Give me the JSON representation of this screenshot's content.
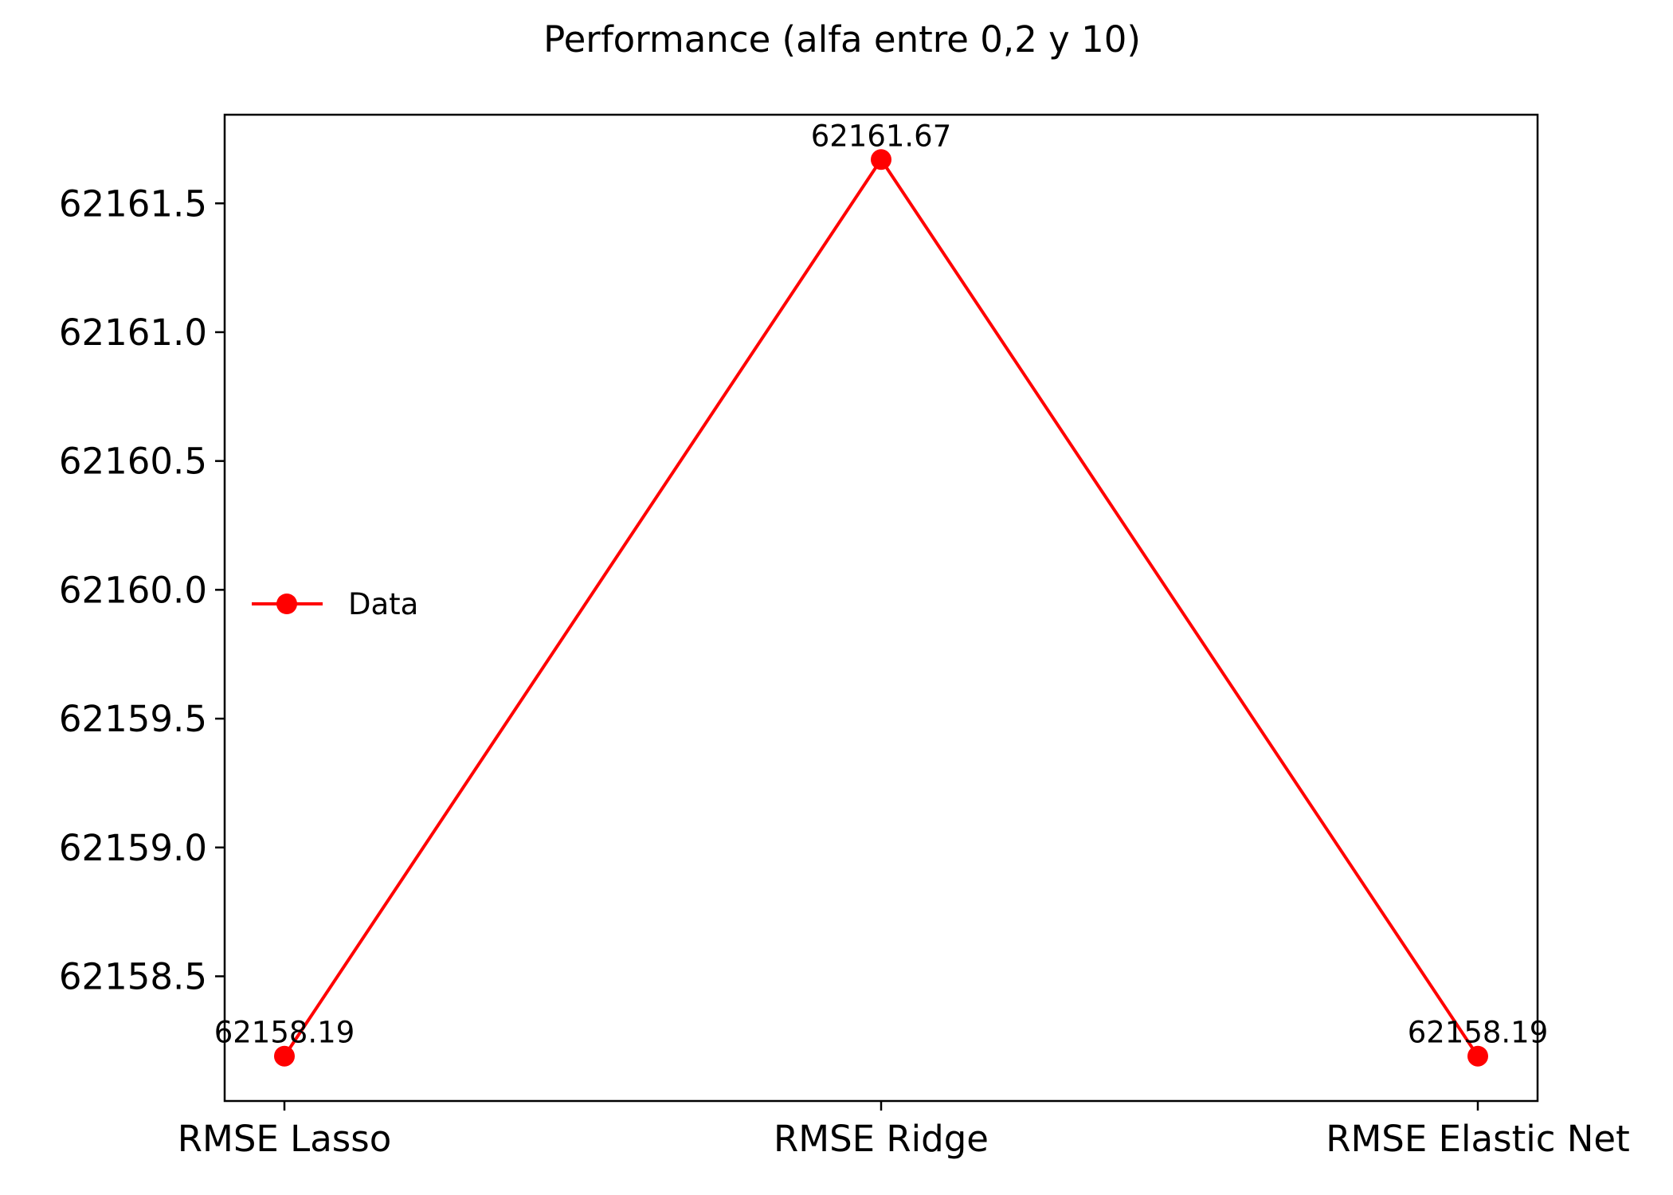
{
  "chart_data": {
    "type": "line",
    "title": "Performance (alfa entre 0,2 y 10)",
    "xlabel": "",
    "ylabel": "",
    "categories": [
      "RMSE Lasso",
      "RMSE Ridge",
      "RMSE Elastic Net"
    ],
    "series": [
      {
        "name": "Data",
        "values": [
          62158.19,
          62161.67,
          62158.19
        ],
        "value_labels": [
          "62158.19",
          "62161.67",
          "62158.19"
        ],
        "color": "#ff0000",
        "marker": "circle"
      }
    ],
    "y_ticks": [
      62158.5,
      62159.0,
      62159.5,
      62160.0,
      62160.5,
      62161.0,
      62161.5
    ],
    "y_tick_labels": [
      "62158.5",
      "62159.0",
      "62159.5",
      "62160.0",
      "62160.5",
      "62161.0",
      "62161.5"
    ],
    "ylim": [
      62158.016,
      62161.844
    ],
    "grid": false,
    "legend_position": "center-left"
  }
}
